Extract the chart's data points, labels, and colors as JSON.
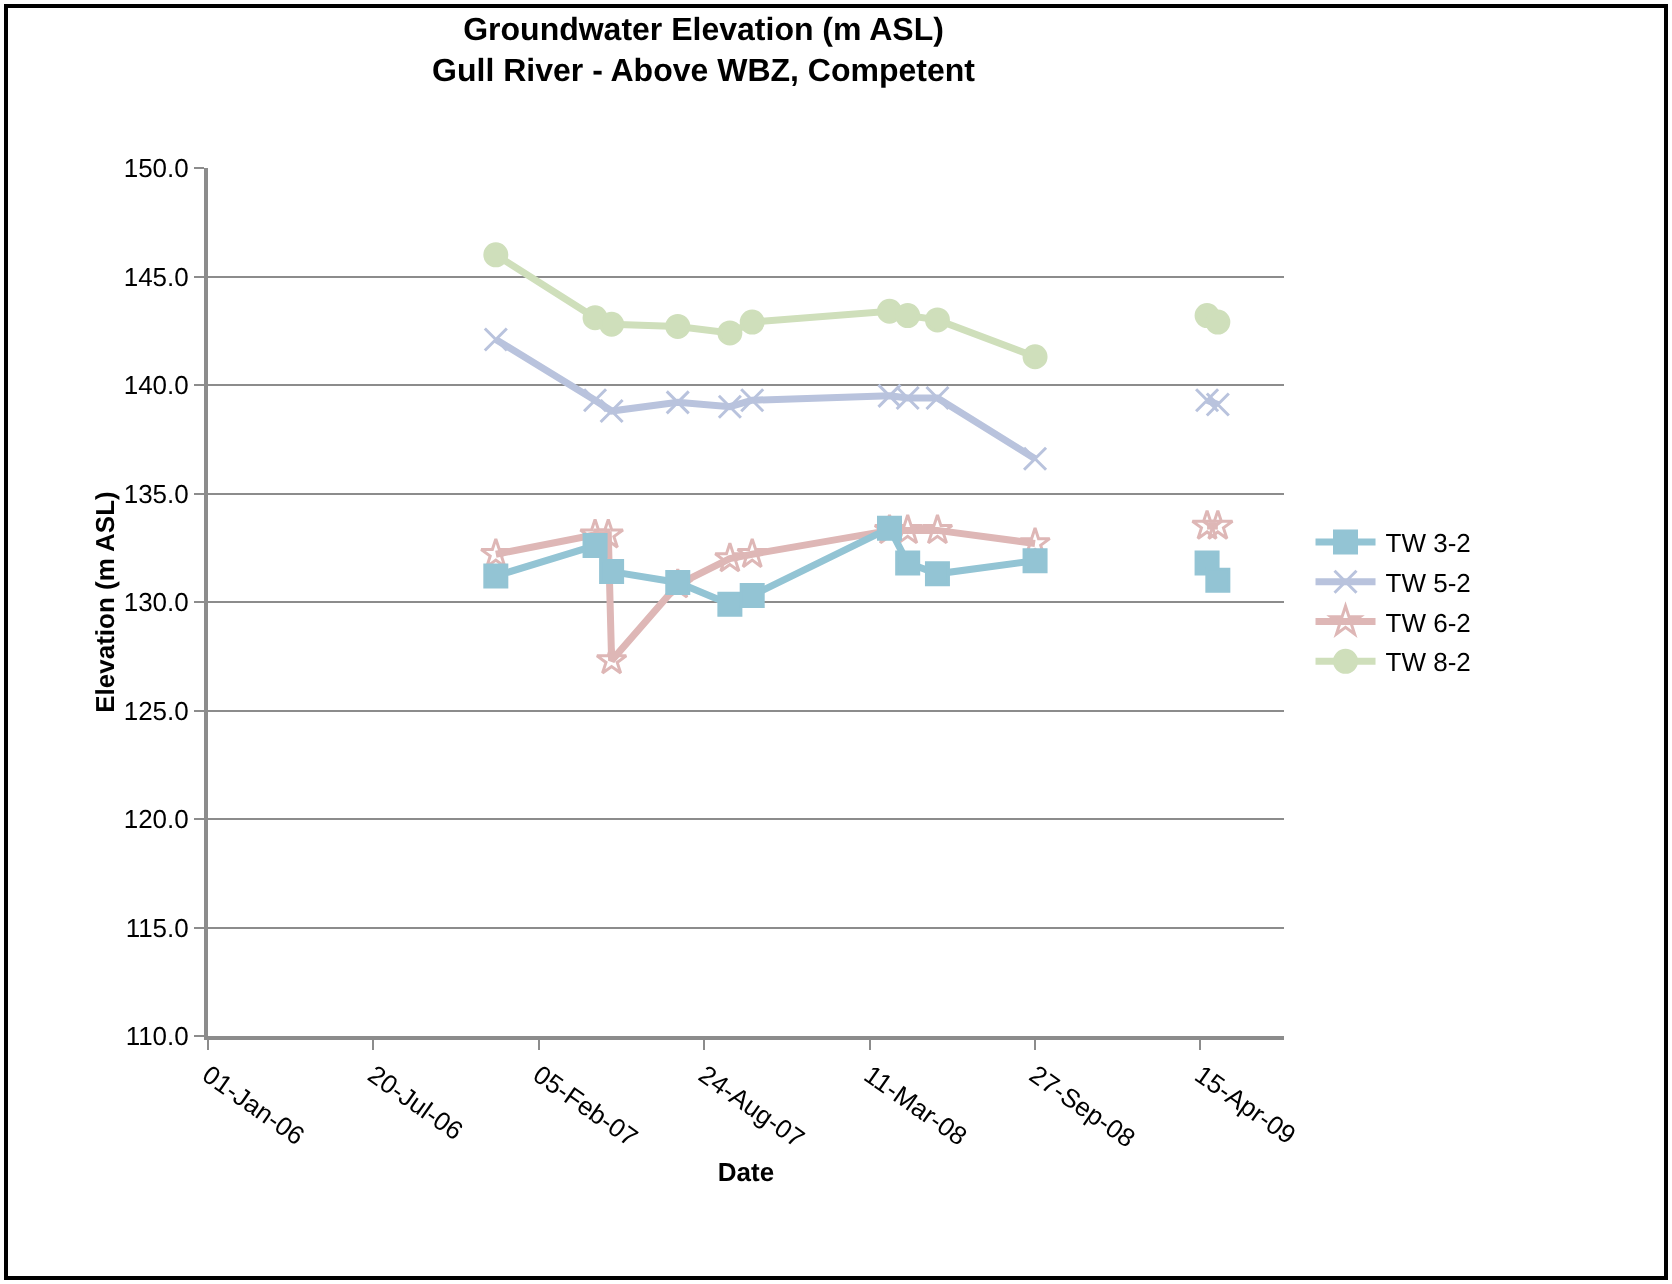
{
  "chart_data": {
    "type": "line",
    "title": "Groundwater Elevation (m ASL)",
    "subtitle": "Gull River - Above WBZ, Competent",
    "xlabel": "Date",
    "ylabel": "Elevation (m ASL)",
    "xlim": [
      "2006-01-01",
      "2009-07-25"
    ],
    "xticks": [
      {
        "value": "2006-01-01",
        "label": "01-Jan-06"
      },
      {
        "value": "2006-07-20",
        "label": "20-Jul-06"
      },
      {
        "value": "2007-02-05",
        "label": "05-Feb-07"
      },
      {
        "value": "2007-08-24",
        "label": "24-Aug-07"
      },
      {
        "value": "2008-03-11",
        "label": "11-Mar-08"
      },
      {
        "value": "2008-09-27",
        "label": "27-Sep-08"
      },
      {
        "value": "2009-04-15",
        "label": "15-Apr-09"
      }
    ],
    "ylim": [
      110,
      150
    ],
    "yticks": [
      {
        "value": 110,
        "label": "110.0"
      },
      {
        "value": 115,
        "label": "115.0"
      },
      {
        "value": 120,
        "label": "120.0"
      },
      {
        "value": 125,
        "label": "125.0"
      },
      {
        "value": 130,
        "label": "130.0"
      },
      {
        "value": 135,
        "label": "135.0"
      },
      {
        "value": 140,
        "label": "140.0"
      },
      {
        "value": 145,
        "label": "145.0"
      },
      {
        "value": 150,
        "label": "150.0"
      }
    ],
    "grid": "y",
    "legend": "right",
    "series": [
      {
        "name": "TW 3-2",
        "color": "#93c4d4",
        "marker": "square",
        "x": [
          "2006-12-15",
          "2007-04-14",
          "2007-05-04",
          "2007-07-23",
          "2007-09-24",
          "2007-10-21",
          "2008-04-04",
          "2008-04-26",
          "2008-06-01",
          "2008-09-27",
          "2009-01-01",
          "2009-04-23",
          "2009-05-06"
        ],
        "values": [
          131.2,
          132.6,
          131.4,
          130.9,
          129.9,
          130.3,
          133.4,
          131.8,
          131.3,
          131.9,
          null,
          131.8,
          131.0
        ]
      },
      {
        "name": "TW 5-2",
        "color": "#b9c3dd",
        "marker": "cross",
        "x": [
          "2006-12-15",
          "2007-04-14",
          "2007-05-04",
          "2007-07-23",
          "2007-09-24",
          "2007-10-21",
          "2008-04-04",
          "2008-04-26",
          "2008-06-01",
          "2008-09-27",
          "2009-01-01",
          "2009-04-23",
          "2009-05-06"
        ],
        "values": [
          142.1,
          139.3,
          138.8,
          139.2,
          139.0,
          139.3,
          139.5,
          139.4,
          139.4,
          136.6,
          null,
          139.3,
          139.1
        ]
      },
      {
        "name": "TW 6-2",
        "color": "#deb7b6",
        "marker": "star",
        "x": [
          "2006-12-15",
          "2007-04-14",
          "2007-04-30",
          "2007-05-04",
          "2007-07-23",
          "2007-09-24",
          "2007-10-21",
          "2008-04-04",
          "2008-04-26",
          "2008-06-01",
          "2008-09-27",
          "2009-01-01",
          "2009-04-23",
          "2009-05-06"
        ],
        "values": [
          132.2,
          133.1,
          133.1,
          127.3,
          130.8,
          132.0,
          132.2,
          133.3,
          133.3,
          133.3,
          132.7,
          null,
          133.5,
          133.5
        ]
      },
      {
        "name": "TW 8-2",
        "color": "#cfdfbb",
        "marker": "circle",
        "x": [
          "2006-12-15",
          "2007-04-14",
          "2007-05-04",
          "2007-07-23",
          "2007-09-24",
          "2007-10-21",
          "2008-04-04",
          "2008-04-26",
          "2008-06-01",
          "2008-09-27",
          "2009-01-01",
          "2009-04-23",
          "2009-05-06"
        ],
        "values": [
          146.0,
          143.1,
          142.8,
          142.7,
          142.4,
          142.9,
          143.4,
          143.2,
          143.0,
          141.3,
          null,
          143.2,
          142.9
        ]
      }
    ]
  }
}
